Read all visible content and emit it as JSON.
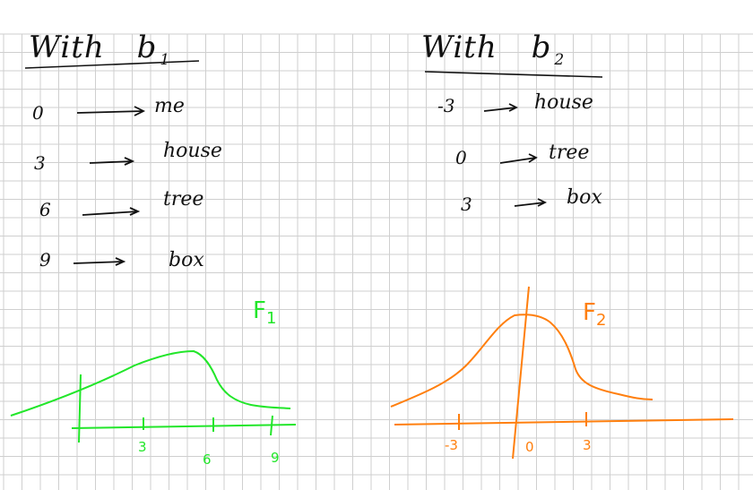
{
  "left_panel": {
    "title_prefix": "With",
    "title_var": "b",
    "title_sub": "1",
    "mappings": [
      {
        "value": "0",
        "word": "me"
      },
      {
        "value": "3",
        "word": "house"
      },
      {
        "value": "6",
        "word": "tree"
      },
      {
        "value": "9",
        "word": "box"
      }
    ],
    "curve_label": "F",
    "curve_sub": "1",
    "axis_ticks": [
      "3",
      "6",
      "9"
    ],
    "curve_color": "#22e62a"
  },
  "right_panel": {
    "title_prefix": "With",
    "title_var": "b",
    "title_sub": "2",
    "mappings": [
      {
        "value": "-3",
        "word": "house"
      },
      {
        "value": "0",
        "word": "tree"
      },
      {
        "value": "3",
        "word": "box"
      }
    ],
    "curve_label": "F",
    "curve_sub": "2",
    "axis_ticks": [
      "-3",
      "0",
      "3"
    ],
    "curve_color": "#ff7f0e"
  },
  "grid_color": "#cfcfcf"
}
